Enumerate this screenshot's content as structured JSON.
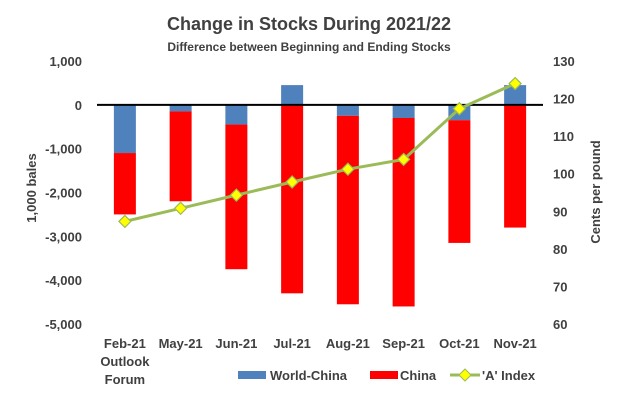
{
  "chart_data": {
    "type": "bar",
    "title": "Change in Stocks During 2021/22",
    "subtitle": "Difference between Beginning and Ending Stocks",
    "categories": [
      [
        "Feb-21",
        "Outlook",
        "Forum"
      ],
      [
        "May-21"
      ],
      [
        "Jun-21"
      ],
      [
        "Jul-21"
      ],
      [
        "Aug-21"
      ],
      [
        "Sep-21"
      ],
      [
        "Oct-21"
      ],
      [
        "Nov-21"
      ]
    ],
    "ylabel_left": "1,000 bales",
    "ylabel_right": "Cents per pound",
    "ylim_left": [
      -5000,
      1000
    ],
    "yticks_left": [
      "1,000",
      "0",
      "-1,000",
      "-2,000",
      "-3,000",
      "-4,000",
      "-5,000"
    ],
    "ylim_right": [
      60,
      130
    ],
    "yticks_right": [
      "130",
      "120",
      "110",
      "100",
      "90",
      "80",
      "70",
      "60"
    ],
    "stacked": true,
    "series": [
      {
        "name": "World-China",
        "type": "bar",
        "axis": "left",
        "color": "#4f81bd",
        "values": [
          -1100,
          -150,
          -450,
          450,
          -250,
          -300,
          -350,
          450
        ]
      },
      {
        "name": "China",
        "type": "bar",
        "axis": "left",
        "color": "#ff0000",
        "values": [
          -1400,
          -2050,
          -3300,
          -4300,
          -4300,
          -4300,
          -2800,
          -2800
        ]
      },
      {
        "name": "'A' Index",
        "type": "line",
        "axis": "right",
        "color": "#9bbb59",
        "marker_color": "#ffff00",
        "values": [
          87.3,
          90.8,
          94.3,
          97.8,
          101.2,
          103.8,
          117.3,
          124.0
        ]
      }
    ],
    "legend_position": "bottom",
    "grid": false
  }
}
